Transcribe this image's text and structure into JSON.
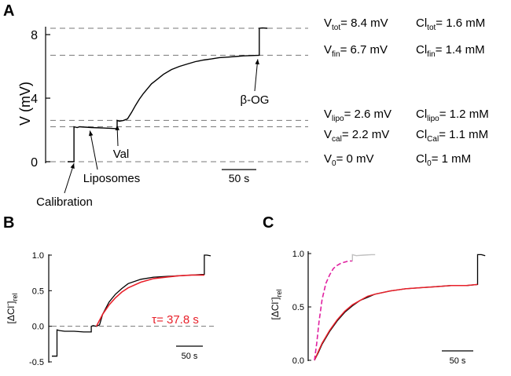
{
  "panels": {
    "a": "A",
    "b": "B",
    "c": "C"
  },
  "colors": {
    "trace": "#000000",
    "fit": "#e8202a",
    "dashed_fit": "#e020a0",
    "gray_trace": "#c0c0c0",
    "ref_line": "#777777"
  },
  "chart_data": [
    {
      "type": "line",
      "panel": "A",
      "ylabel": "V (mV)",
      "ylim": [
        0,
        8.6
      ],
      "yticks": [
        "0",
        "4",
        "8"
      ],
      "grid": false,
      "scale_bar_label": "50 s",
      "x_unit": "s",
      "xlim": [
        0,
        250
      ],
      "series": [
        {
          "name": "voltage",
          "x": [
            0,
            8,
            8,
            12,
            15,
            30,
            45,
            62,
            62,
            65,
            70,
            75,
            80,
            85,
            90,
            95,
            100,
            105,
            110,
            120,
            130,
            140,
            150,
            160,
            170,
            180,
            190,
            200,
            210,
            220,
            230,
            240,
            240,
            244,
            250
          ],
          "y": [
            0,
            0,
            2.2,
            2.15,
            2.2,
            2.15,
            2.12,
            2.08,
            2.6,
            2.55,
            2.6,
            2.7,
            3.1,
            3.55,
            3.95,
            4.3,
            4.6,
            4.9,
            5.1,
            5.5,
            5.8,
            6.0,
            6.15,
            6.3,
            6.4,
            6.47,
            6.55,
            6.58,
            6.62,
            6.66,
            6.68,
            6.7,
            8.4,
            8.42,
            8.4
          ]
        }
      ],
      "reference_lines": [
        {
          "y": 8.4,
          "label_v": "V",
          "sub_v": "tot",
          "value_v": "= 8.4 mV",
          "label_c": "Cl",
          "sub_c": "tot",
          "value_c": "= 1.6 mM"
        },
        {
          "y": 6.7,
          "label_v": "V",
          "sub_v": "fin",
          "value_v": "= 6.7 mV",
          "label_c": "Cl",
          "sub_c": "fin",
          "value_c": "= 1.4 mM"
        },
        {
          "y": 2.6,
          "label_v": "V",
          "sub_v": "lipo",
          "value_v": "= 2.6 mV",
          "label_c": "Cl",
          "sub_c": "lipo",
          "value_c": "= 1.2 mM"
        },
        {
          "y": 2.2,
          "label_v": "V",
          "sub_v": "cal",
          "value_v": "= 2.2 mV",
          "label_c": "Cl",
          "sub_c": "Cal",
          "value_c": "= 1.1 mM"
        },
        {
          "y": 0,
          "label_v": "V",
          "sub_v": "0",
          "value_v": "= 0 mV",
          "label_c": "Cl",
          "sub_c": "0",
          "value_c": "= 1 mM"
        }
      ],
      "annotations": [
        {
          "text": "Calibration",
          "x": 8,
          "y": 0
        },
        {
          "text": "Liposomes",
          "x": 28,
          "y": 2.15
        },
        {
          "text": "Val",
          "x": 62,
          "y": 2.5
        },
        {
          "text": "β-OG",
          "x": 240,
          "y": 6.8
        }
      ]
    },
    {
      "type": "line",
      "panel": "B",
      "ylabel_main": "[ΔCl",
      "ylabel_sup": "-",
      "ylabel_close": "]",
      "ylabel_sub": "rel",
      "ylim": [
        -0.5,
        1.0
      ],
      "yticks": [
        "-0.5",
        "0.0",
        "0.5",
        "1.0"
      ],
      "scale_bar_label": "50 s",
      "fit_label": "τ= 37.8 s",
      "tau_s": 37.8,
      "xlim": [
        0,
        250
      ],
      "series": [
        {
          "name": "data",
          "x": [
            0,
            8,
            8,
            12,
            20,
            35,
            50,
            62,
            62,
            65,
            70,
            75,
            80,
            90,
            100,
            110,
            120,
            140,
            160,
            180,
            200,
            220,
            240,
            240,
            244,
            250
          ],
          "y": [
            -0.42,
            -0.42,
            -0.05,
            -0.06,
            -0.07,
            -0.07,
            -0.08,
            -0.08,
            0.0,
            0.01,
            0.0,
            0.02,
            0.17,
            0.34,
            0.45,
            0.53,
            0.6,
            0.66,
            0.69,
            0.7,
            0.71,
            0.72,
            0.73,
            1.0,
            1.0,
            0.99
          ]
        },
        {
          "name": "fit",
          "x": [
            70,
            80,
            90,
            100,
            110,
            120,
            140,
            160,
            180,
            200,
            220,
            240
          ],
          "y": [
            0.0,
            0.17,
            0.3,
            0.4,
            0.48,
            0.54,
            0.62,
            0.67,
            0.69,
            0.71,
            0.72,
            0.72
          ]
        }
      ],
      "reference_lines": [
        {
          "y": 0.0
        }
      ]
    },
    {
      "type": "line",
      "panel": "C",
      "ylabel_main": "[ΔCl",
      "ylabel_sup": "-",
      "ylabel_close": "]",
      "ylabel_sub": "rel",
      "ylim": [
        0.0,
        1.0
      ],
      "yticks": [
        "0.0",
        "0.5",
        "1.0"
      ],
      "scale_bar_label": "50 s",
      "xlim": [
        0,
        230
      ],
      "series": [
        {
          "name": "slow",
          "x": [
            0,
            5,
            10,
            15,
            20,
            30,
            40,
            50,
            60,
            70,
            80,
            100,
            120,
            140,
            160,
            180,
            200,
            215,
            215,
            220,
            225
          ],
          "y": [
            0.0,
            0.07,
            0.15,
            0.21,
            0.27,
            0.37,
            0.45,
            0.51,
            0.56,
            0.59,
            0.62,
            0.65,
            0.67,
            0.68,
            0.69,
            0.7,
            0.7,
            0.71,
            0.99,
            0.99,
            0.98
          ]
        },
        {
          "name": "slow_fit",
          "x": [
            0,
            5,
            10,
            15,
            20,
            30,
            40,
            50,
            60,
            70,
            80,
            100,
            120,
            140,
            160,
            180,
            200,
            215
          ],
          "y": [
            0.0,
            0.08,
            0.16,
            0.22,
            0.28,
            0.38,
            0.46,
            0.52,
            0.56,
            0.6,
            0.62,
            0.65,
            0.67,
            0.68,
            0.69,
            0.7,
            0.7,
            0.71
          ]
        },
        {
          "name": "fast",
          "x": [
            0,
            3,
            6,
            10,
            15,
            20,
            25,
            30,
            35,
            40,
            45,
            50
          ],
          "y": [
            0.0,
            0.16,
            0.36,
            0.57,
            0.72,
            0.8,
            0.86,
            0.89,
            0.91,
            0.92,
            0.93,
            0.93
          ]
        },
        {
          "name": "fast_gray",
          "x": [
            50,
            50,
            55,
            65,
            75,
            80
          ],
          "y": [
            0.93,
            0.99,
            0.98,
            0.985,
            0.99,
            0.99
          ]
        }
      ]
    }
  ]
}
